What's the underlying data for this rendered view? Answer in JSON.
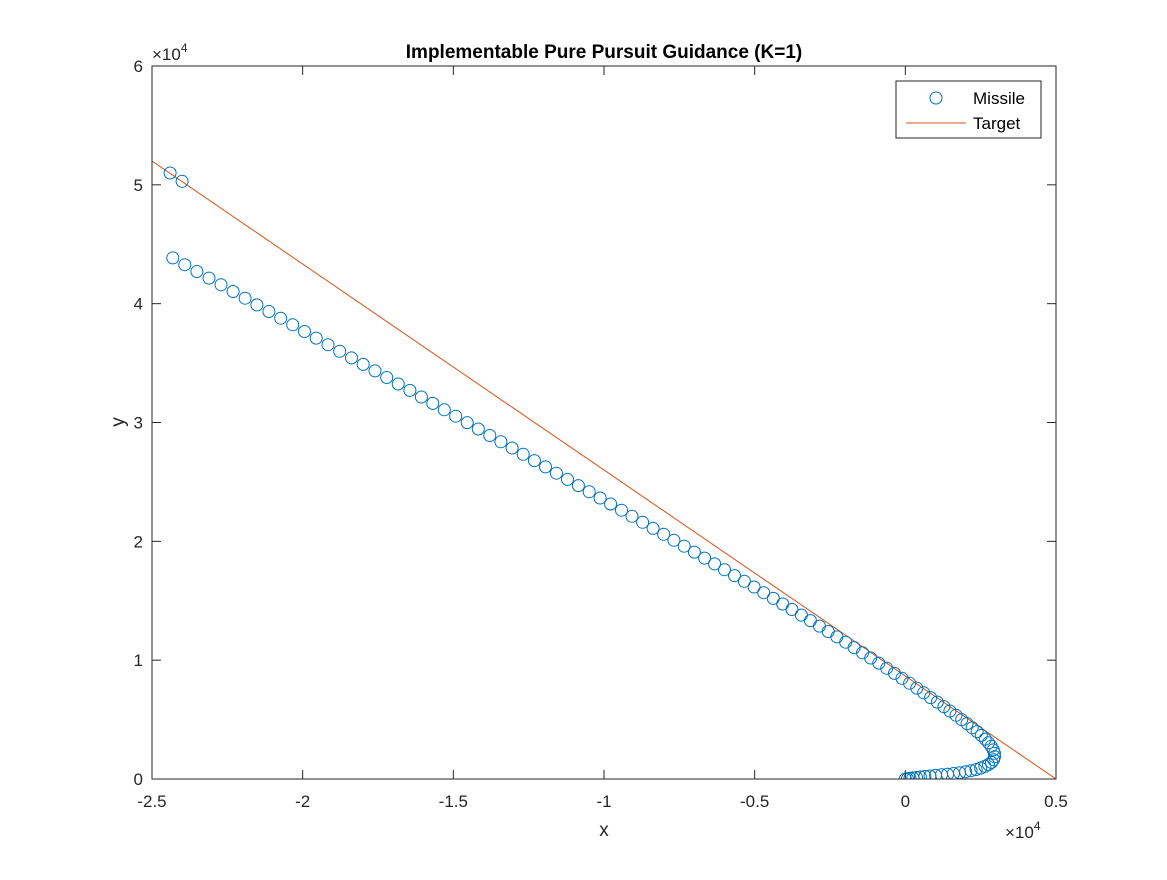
{
  "chart_data": {
    "type": "line",
    "title": "Implementable Pure Pursuit Guidance (K=1)",
    "xlabel": "x",
    "ylabel": "y",
    "x_multiplier": "×10",
    "x_exponent": "4",
    "y_multiplier": "×10",
    "y_exponent": "4",
    "xlim": [
      -25000,
      5000
    ],
    "ylim": [
      0,
      60000
    ],
    "x_ticks": [
      -25000,
      -20000,
      -15000,
      -10000,
      -5000,
      0,
      5000
    ],
    "x_tick_labels": [
      "-2.5",
      "-2",
      "-1.5",
      "-1",
      "-0.5",
      "0",
      "0.5"
    ],
    "y_ticks": [
      0,
      10000,
      20000,
      30000,
      40000,
      50000,
      60000
    ],
    "y_tick_labels": [
      "0",
      "1",
      "2",
      "3",
      "4",
      "5",
      "6"
    ],
    "grid": false,
    "legend_position": "top-right",
    "series": [
      {
        "name": "Missile",
        "style": "circle-markers",
        "color": "#0072BD",
        "points": [
          [
            0,
            0
          ],
          [
            70,
            20
          ],
          [
            150,
            50
          ],
          [
            250,
            90
          ],
          [
            370,
            130
          ],
          [
            500,
            170
          ],
          [
            650,
            210
          ],
          [
            820,
            250
          ],
          [
            1000,
            300
          ],
          [
            1200,
            350
          ],
          [
            1400,
            400
          ],
          [
            1600,
            460
          ],
          [
            1800,
            530
          ],
          [
            2000,
            610
          ],
          [
            2180,
            700
          ],
          [
            2350,
            800
          ],
          [
            2500,
            920
          ],
          [
            2640,
            1060
          ],
          [
            2760,
            1220
          ],
          [
            2860,
            1400
          ],
          [
            2930,
            1620
          ],
          [
            2960,
            1880
          ],
          [
            2960,
            2160
          ],
          [
            2920,
            2450
          ],
          [
            2850,
            2750
          ],
          [
            2760,
            3050
          ],
          [
            2650,
            3360
          ],
          [
            2520,
            3670
          ],
          [
            2380,
            3990
          ],
          [
            2220,
            4320
          ],
          [
            2050,
            4660
          ],
          [
            1870,
            5000
          ],
          [
            1680,
            5360
          ],
          [
            1480,
            5720
          ],
          [
            1280,
            6090
          ],
          [
            1060,
            6470
          ],
          [
            840,
            6850
          ],
          [
            610,
            7250
          ],
          [
            380,
            7650
          ],
          [
            140,
            8060
          ],
          [
            -110,
            8470
          ],
          [
            -360,
            8890
          ],
          [
            -620,
            9320
          ],
          [
            -880,
            9750
          ],
          [
            -1150,
            10180
          ],
          [
            -1420,
            10620
          ],
          [
            -1700,
            11060
          ],
          [
            -1980,
            11510
          ],
          [
            -2270,
            11960
          ],
          [
            -2560,
            12410
          ],
          [
            -2850,
            12870
          ],
          [
            -3150,
            13330
          ],
          [
            -3450,
            13790
          ],
          [
            -3760,
            14260
          ],
          [
            -4070,
            14730
          ],
          [
            -4380,
            15200
          ],
          [
            -4700,
            15680
          ],
          [
            -5020,
            16160
          ],
          [
            -5340,
            16640
          ],
          [
            -5670,
            17120
          ],
          [
            -6000,
            17610
          ],
          [
            -6330,
            18100
          ],
          [
            -6660,
            18590
          ],
          [
            -7000,
            19090
          ],
          [
            -7340,
            19590
          ],
          [
            -7680,
            20090
          ],
          [
            -8020,
            20590
          ],
          [
            -8370,
            21090
          ],
          [
            -8720,
            21600
          ],
          [
            -9070,
            22110
          ],
          [
            -9420,
            22620
          ],
          [
            -9780,
            23140
          ],
          [
            -10130,
            23650
          ],
          [
            -10490,
            24170
          ],
          [
            -10850,
            24690
          ],
          [
            -11210,
            25210
          ],
          [
            -11580,
            25730
          ],
          [
            -11940,
            26260
          ],
          [
            -12310,
            26790
          ],
          [
            -12680,
            27320
          ],
          [
            -13050,
            27850
          ],
          [
            -13420,
            28380
          ],
          [
            -13790,
            28910
          ],
          [
            -14170,
            29450
          ],
          [
            -14540,
            29990
          ],
          [
            -14920,
            30530
          ],
          [
            -15300,
            31070
          ],
          [
            -15680,
            31610
          ],
          [
            -16060,
            32150
          ],
          [
            -16440,
            32700
          ],
          [
            -16830,
            33240
          ],
          [
            -17210,
            33790
          ],
          [
            -17600,
            34340
          ],
          [
            -17990,
            34890
          ],
          [
            -18380,
            35440
          ],
          [
            -18770,
            35990
          ],
          [
            -19160,
            36550
          ],
          [
            -19550,
            37100
          ],
          [
            -19940,
            37660
          ],
          [
            -20330,
            38220
          ],
          [
            -20730,
            38780
          ],
          [
            -21120,
            39340
          ],
          [
            -21520,
            39900
          ],
          [
            -21910,
            40460
          ],
          [
            -22310,
            41020
          ],
          [
            -22710,
            41590
          ],
          [
            -23110,
            42150
          ],
          [
            -23510,
            42710
          ],
          [
            -23910,
            43280
          ],
          [
            -24310,
            43850
          ],
          [
            -24400,
            51000
          ],
          [
            -24000,
            50300
          ]
        ]
      },
      {
        "name": "Target",
        "style": "line",
        "color": "#D95319",
        "points": [
          [
            5000,
            0
          ],
          [
            -25000,
            52000
          ]
        ]
      }
    ]
  }
}
